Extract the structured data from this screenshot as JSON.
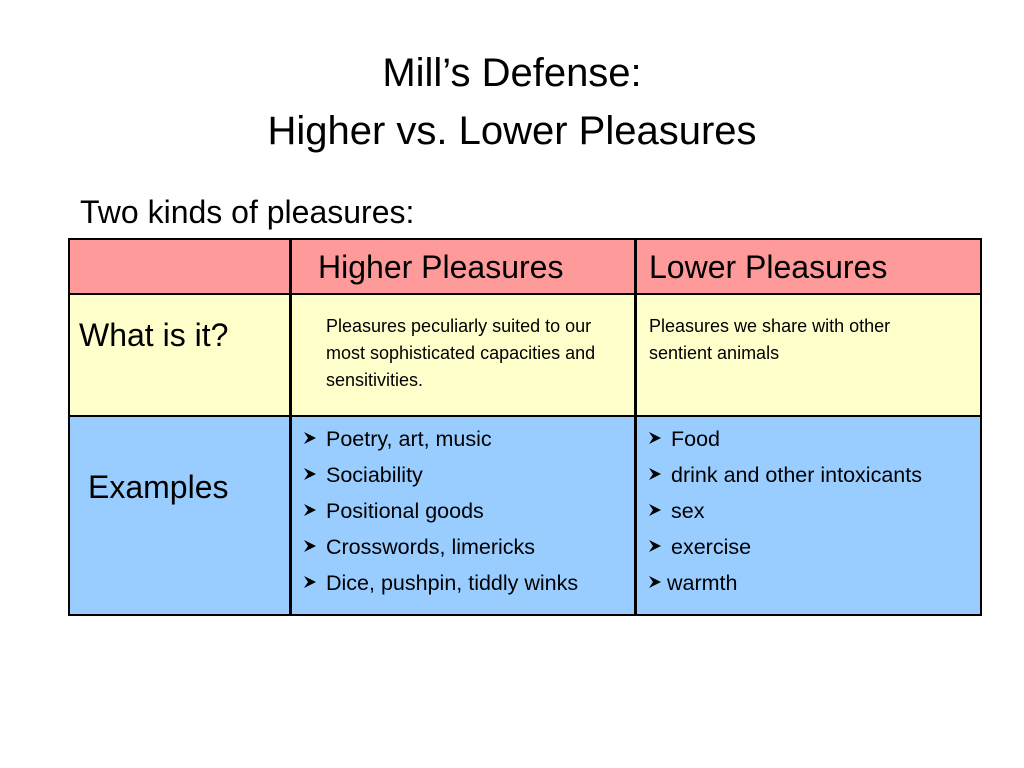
{
  "title": {
    "line1": "Mill’s Defense:",
    "line2": "Higher vs. Lower Pleasures"
  },
  "intro": "Two kinds of pleasures:",
  "table": {
    "headers": {
      "corner": "",
      "higher": "Higher Pleasures",
      "lower": "Lower Pleasures"
    },
    "rows": {
      "what": {
        "label": "What is it?",
        "higher": "Pleasures peculiarly suited to our most sophisticated capacities and sensitivities.",
        "lower": "Pleasures we share with other sentient animals"
      },
      "examples": {
        "label": "Examples",
        "higher": [
          "Poetry, art, music",
          "Sociability",
          "Positional goods",
          "Crosswords, limericks",
          "Dice, pushpin, tiddly winks"
        ],
        "lower": [
          "Food",
          "drink and other intoxicants",
          "sex",
          "exercise",
          "warmth"
        ]
      }
    }
  },
  "icons": {
    "bullet": "arrowhead-bullet-icon"
  },
  "colors": {
    "header_row": "#ff9a9a",
    "what_row": "#ffffcc",
    "examples_row": "#99ccff"
  }
}
